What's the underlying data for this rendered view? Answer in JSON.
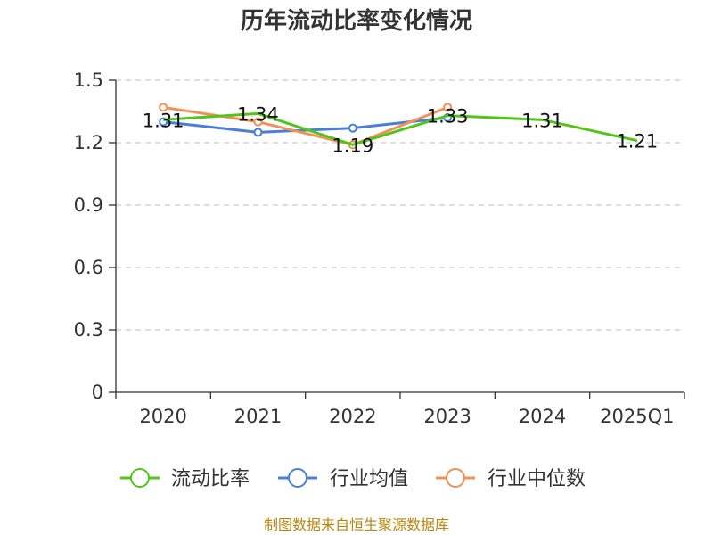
{
  "chart_data": {
    "type": "line",
    "title": "历年流动比率变化情况",
    "categories": [
      "2020",
      "2021",
      "2022",
      "2023",
      "2024",
      "2025Q1"
    ],
    "ylim": [
      0,
      1.5
    ],
    "yticks": [
      "0",
      "0.3",
      "0.6",
      "0.9",
      "1.2",
      "1.5"
    ],
    "grid": true,
    "legend_position": "bottom",
    "series": [
      {
        "name": "流动比率",
        "color": "#52c41a",
        "values": [
          1.31,
          1.34,
          1.19,
          1.33,
          1.31,
          1.21
        ],
        "labels": [
          "1.31",
          "1.34",
          "1.19",
          "1.33",
          "1.31",
          "1.21"
        ]
      },
      {
        "name": "行业均值",
        "color": "#4a7fd8",
        "values": [
          1.3,
          1.25,
          1.27,
          1.32,
          null,
          null
        ]
      },
      {
        "name": "行业中位数",
        "color": "#f0915a",
        "values": [
          1.37,
          1.3,
          1.19,
          1.37,
          null,
          null
        ]
      }
    ]
  },
  "source": "制图数据来自恒生聚源数据库"
}
